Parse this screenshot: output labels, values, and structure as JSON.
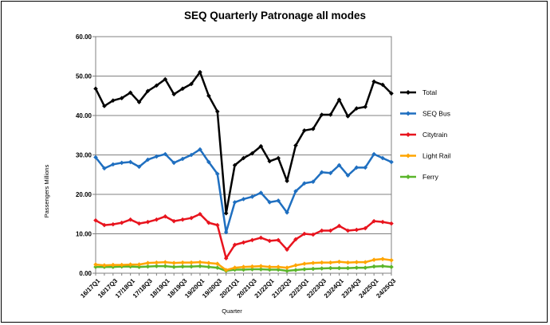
{
  "chart_data": {
    "type": "line",
    "title": "SEQ Quarterly Patronage all modes",
    "xlabel": "Quarter",
    "ylabel": "Passengers Millions",
    "ylim": [
      0,
      60
    ],
    "yticks": [
      "0.00",
      "10.00",
      "20.00",
      "30.00",
      "40.00",
      "50.00",
      "60.00"
    ],
    "ytick_values": [
      0,
      10,
      20,
      30,
      40,
      50,
      60
    ],
    "grid": "horizontal",
    "legend_position": "right",
    "categories": [
      "16/17Q1",
      "16/17Q2",
      "16/17Q3",
      "16/17Q4",
      "17/18Q1",
      "17/18Q2",
      "17/18Q3",
      "17/18Q4",
      "18/19Q1",
      "18/19Q2",
      "18/19Q3",
      "18/19Q4",
      "19/20Q1",
      "19/20Q2",
      "19/20Q3",
      "19/20Q4",
      "20/21Q1",
      "20/21Q2",
      "20/21Q3",
      "20/21Q4",
      "21/22Q1",
      "21/22Q2",
      "21/22Q3",
      "21/22Q4",
      "22/23Q1",
      "22/23Q2",
      "22/23Q3",
      "22/23Q4",
      "23/24Q1",
      "23/24Q2",
      "23/24Q3",
      "23/24Q4",
      "24/25Q1",
      "24/25Q2",
      "24/25Q3"
    ],
    "tick_labels": [
      "16/17Q1",
      "16/17Q3",
      "17/18Q1",
      "17/18Q3",
      "18/19Q1",
      "18/19Q3",
      "19/20Q1",
      "19/20Q3",
      "20/21Q1",
      "20/21Q3",
      "21/22Q1",
      "21/22Q3",
      "22/23Q1",
      "22/23Q3",
      "23/24Q1",
      "23/24Q3",
      "24/25Q1",
      "24/25Q3"
    ],
    "series": [
      {
        "name": "Total",
        "color": "#000000",
        "values": [
          46.8,
          42.4,
          43.8,
          44.4,
          45.8,
          43.4,
          46.2,
          47.6,
          49.2,
          45.4,
          46.8,
          48.0,
          51.0,
          45.0,
          41.0,
          15.2,
          27.4,
          29.2,
          30.4,
          32.2,
          28.4,
          29.2,
          23.4,
          32.4,
          36.2,
          36.6,
          40.2,
          40.2,
          44.0,
          39.8,
          41.8,
          42.2,
          48.6,
          47.8,
          45.6
        ]
      },
      {
        "name": "SEQ Bus",
        "color": "#1f6fc0",
        "values": [
          29.4,
          26.6,
          27.6,
          28.0,
          28.2,
          27.0,
          28.8,
          29.6,
          30.2,
          28.0,
          29.0,
          30.0,
          31.4,
          28.2,
          25.2,
          10.4,
          18.0,
          18.8,
          19.4,
          20.4,
          18.0,
          18.4,
          15.4,
          20.8,
          22.8,
          23.2,
          25.6,
          25.4,
          27.4,
          24.8,
          26.8,
          26.8,
          30.2,
          29.2,
          28.2
        ]
      },
      {
        "name": "Citytrain",
        "color": "#e8141e",
        "values": [
          13.4,
          12.2,
          12.4,
          12.8,
          13.6,
          12.6,
          13.0,
          13.6,
          14.4,
          13.2,
          13.6,
          14.0,
          15.0,
          12.8,
          12.2,
          3.8,
          7.2,
          7.8,
          8.4,
          9.0,
          8.2,
          8.4,
          6.0,
          8.6,
          10.0,
          9.8,
          10.8,
          10.8,
          12.0,
          10.8,
          11.0,
          11.4,
          13.2,
          13.0,
          12.6
        ]
      },
      {
        "name": "Light Rail",
        "color": "#ffa500",
        "values": [
          2.2,
          2.0,
          2.1,
          2.1,
          2.2,
          2.2,
          2.6,
          2.7,
          2.8,
          2.6,
          2.7,
          2.7,
          2.8,
          2.6,
          2.4,
          0.8,
          1.4,
          1.6,
          1.7,
          1.8,
          1.6,
          1.6,
          1.4,
          2.0,
          2.4,
          2.6,
          2.7,
          2.7,
          2.9,
          2.7,
          2.8,
          2.8,
          3.4,
          3.6,
          3.3
        ]
      },
      {
        "name": "Ferry",
        "color": "#5ab52a",
        "values": [
          1.6,
          1.6,
          1.6,
          1.7,
          1.7,
          1.6,
          1.7,
          1.8,
          1.8,
          1.6,
          1.7,
          1.7,
          1.8,
          1.6,
          1.4,
          0.6,
          0.9,
          0.9,
          1.0,
          1.0,
          0.9,
          0.9,
          0.6,
          0.8,
          1.0,
          1.1,
          1.2,
          1.3,
          1.3,
          1.3,
          1.4,
          1.4,
          1.7,
          1.8,
          1.6
        ]
      }
    ]
  }
}
